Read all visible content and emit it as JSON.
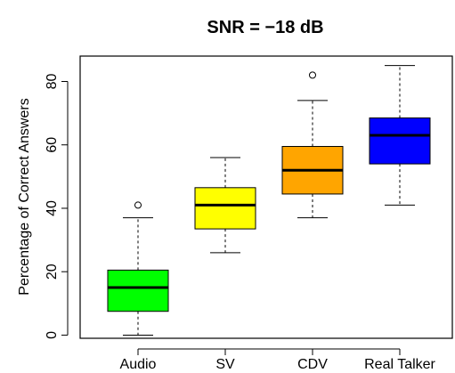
{
  "chart_data": {
    "type": "boxplot",
    "title": "SNR = −18 dB",
    "xlabel": "",
    "ylabel": "Percentage of Correct Answers",
    "ylim": [
      -1,
      88
    ],
    "yticks": [
      0,
      20,
      40,
      60,
      80
    ],
    "categories": [
      "Audio",
      "SV",
      "CDV",
      "Real Talker"
    ],
    "boxes": [
      {
        "category": "Audio",
        "whisker_low": 0,
        "q1": 7.5,
        "median": 15,
        "q3": 20.5,
        "whisker_high": 37,
        "outliers": [
          41
        ],
        "color": "#00ff00"
      },
      {
        "category": "SV",
        "whisker_low": 26,
        "q1": 33.5,
        "median": 41,
        "q3": 46.5,
        "whisker_high": 56,
        "outliers": [],
        "color": "#ffff00"
      },
      {
        "category": "CDV",
        "whisker_low": 37,
        "q1": 44.5,
        "median": 52,
        "q3": 59.5,
        "whisker_high": 74,
        "outliers": [
          82
        ],
        "color": "#ffa500"
      },
      {
        "category": "Real Talker",
        "whisker_low": 41,
        "q1": 54,
        "median": 63,
        "q3": 68.5,
        "whisker_high": 85,
        "outliers": [],
        "color": "#0000ff"
      }
    ]
  }
}
